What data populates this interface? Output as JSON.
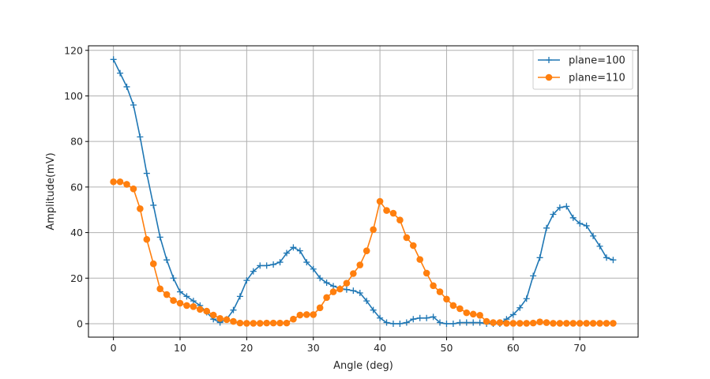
{
  "chart_data": {
    "type": "line",
    "title": "",
    "xlabel": "Angle (deg)",
    "ylabel": "Amplitude(mV)",
    "xlim": [
      -3.75,
      78.75
    ],
    "ylim": [
      -5.9,
      122
    ],
    "xticks": [
      0,
      10,
      20,
      30,
      40,
      50,
      60,
      70
    ],
    "yticks": [
      0,
      20,
      40,
      60,
      80,
      100,
      120
    ],
    "grid": true,
    "legend": "top-right",
    "x": [
      0,
      1,
      2,
      3,
      4,
      5,
      6,
      7,
      8,
      9,
      10,
      11,
      12,
      13,
      14,
      15,
      16,
      17,
      18,
      19,
      20,
      21,
      22,
      23,
      24,
      25,
      26,
      27,
      28,
      29,
      30,
      31,
      32,
      33,
      34,
      35,
      36,
      37,
      38,
      39,
      40,
      41,
      42,
      43,
      44,
      45,
      46,
      47,
      48,
      49,
      50,
      51,
      52,
      53,
      54,
      55,
      56,
      57,
      58,
      59,
      60,
      61,
      62,
      63,
      64,
      65,
      66,
      67,
      68,
      69,
      70,
      71,
      72,
      73,
      74,
      75
    ],
    "series": [
      {
        "name": "plane=100",
        "color": "#1f77b4",
        "marker": "plus",
        "values": [
          116,
          110,
          104,
          96,
          82,
          66,
          52,
          38,
          28,
          20,
          14,
          12,
          10,
          8,
          5,
          2,
          0.5,
          2,
          6,
          12,
          19,
          23,
          25.5,
          25.5,
          26,
          27,
          31,
          33.5,
          32,
          27,
          24,
          20,
          18,
          16.5,
          15.5,
          15,
          14.5,
          13.5,
          10,
          6,
          2.5,
          0.5,
          0,
          0,
          0.5,
          2,
          2.5,
          2.5,
          3,
          0.5,
          0,
          0,
          0.5,
          0.5,
          0.5,
          0.5,
          0,
          0,
          0,
          2,
          4,
          7,
          11,
          21,
          29,
          42,
          48,
          51,
          51.5,
          46.5,
          44,
          43,
          38.5,
          34,
          29,
          28
        ]
      },
      {
        "name": "plane=110",
        "color": "#ff7f0e",
        "marker": "circle",
        "values": [
          62.3,
          62.3,
          61.2,
          59.2,
          50.5,
          37,
          26.3,
          15.3,
          12.8,
          10.2,
          9,
          8,
          7.5,
          6.3,
          5.5,
          3.8,
          2.3,
          1.8,
          1,
          0.3,
          0.2,
          0.2,
          0.2,
          0.3,
          0.3,
          0.3,
          0.3,
          2,
          3.8,
          4,
          4,
          7,
          11.5,
          14,
          15.2,
          17.8,
          22,
          25.8,
          32,
          41.3,
          53.7,
          49.7,
          48.5,
          45.5,
          37.8,
          34.3,
          28.2,
          22.2,
          16.7,
          14,
          10.8,
          8,
          6.6,
          4.8,
          4.2,
          3.7,
          1,
          0.5,
          0.5,
          0.2,
          0.2,
          0.2,
          0.2,
          0.3,
          0.8,
          0.5,
          0.2,
          0.2,
          0.2,
          0.2,
          0.2,
          0.2,
          0.2,
          0.2,
          0.2,
          0.2
        ]
      }
    ]
  }
}
